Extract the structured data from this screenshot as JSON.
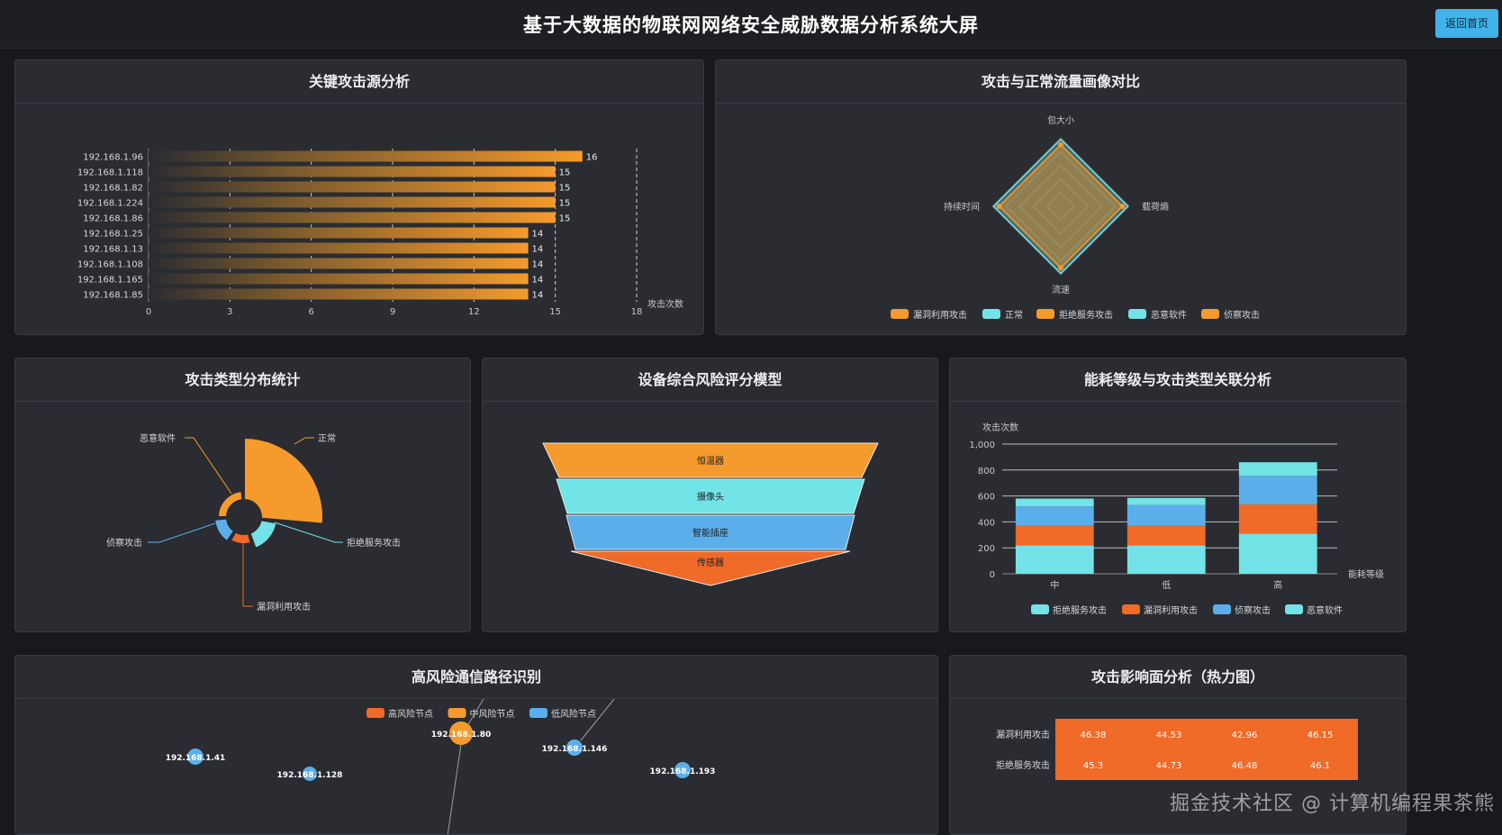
{
  "header": {
    "title": "基于大数据的物联网网络安全威胁数据分析系统大屏",
    "home_button": "返回首页"
  },
  "panels": {
    "attack_source": "关键攻击源分析",
    "profile": "攻击与正常流量画像对比",
    "attack_type": "攻击类型分布统计",
    "risk_model": "设备综合风险评分模型",
    "energy": "能耗等级与攻击类型关联分析",
    "path": "高风险通信路径识别",
    "heatmap": "攻击影响面分析（热力图）"
  },
  "colors": {
    "orange": "#f59a2d",
    "cyan": "#72e3e6",
    "blue": "#5aafea",
    "red_orange": "#f06a28"
  },
  "watermark": "掘金技术社区 @ 计算机编程果茶熊",
  "chart_data": [
    {
      "id": "attack_source",
      "type": "bar",
      "orientation": "horizontal",
      "categories": [
        "192.168.1.96",
        "192.168.1.118",
        "192.168.1.82",
        "192.168.1.224",
        "192.168.1.86",
        "192.168.1.25",
        "192.168.1.13",
        "192.168.1.108",
        "192.168.1.165",
        "192.168.1.85"
      ],
      "values": [
        16,
        15,
        15,
        15,
        15,
        14,
        14,
        14,
        14,
        14
      ],
      "xlabel": "攻击次数",
      "xlim": [
        0,
        18
      ],
      "xticks": [
        0,
        3,
        6,
        9,
        12,
        15,
        18
      ]
    },
    {
      "id": "profile",
      "type": "radar",
      "indicators": [
        "包大小",
        "载荷熵",
        "流速",
        "持续时间"
      ],
      "legend": [
        "漏洞利用攻击",
        "正常",
        "拒绝服务攻击",
        "恶意软件",
        "侦察攻击"
      ],
      "legend_colors": [
        "#f59a2d",
        "#72e3e6",
        "#f59a2d",
        "#72e3e6",
        "#f59a2d"
      ]
    },
    {
      "id": "attack_type",
      "type": "pie",
      "style": "rose",
      "labels": [
        "正常",
        "拒绝服务攻击",
        "漏洞利用攻击",
        "侦察攻击",
        "恶意软件"
      ],
      "colors": [
        "#f59a2d",
        "#72e3e6",
        "#f06a28",
        "#5aafea",
        "#f59a2d"
      ]
    },
    {
      "id": "risk_model",
      "type": "funnel",
      "labels": [
        "恒温器",
        "摄像头",
        "智能插座",
        "传感器"
      ],
      "colors": [
        "#f59a2d",
        "#72e3e6",
        "#5aafea",
        "#f06a28"
      ]
    },
    {
      "id": "energy",
      "type": "bar",
      "stacked": true,
      "categories": [
        "中",
        "低",
        "高"
      ],
      "ylabel": "攻击次数",
      "xlabel": "能耗等级",
      "ylim": [
        0,
        1000
      ],
      "yticks": [
        "0",
        "200",
        "400",
        "600",
        "800",
        "1,000"
      ],
      "series": [
        {
          "name": "拒绝服务攻击",
          "values": [
            220,
            220,
            310
          ],
          "color": "#72e3e6"
        },
        {
          "name": "漏洞利用攻击",
          "values": [
            155,
            150,
            225
          ],
          "color": "#f06a28"
        },
        {
          "name": "侦察攻击",
          "values": [
            145,
            160,
            220
          ],
          "color": "#5aafea"
        },
        {
          "name": "恶意软件",
          "values": [
            60,
            55,
            105
          ],
          "color": "#72e3e6"
        }
      ]
    },
    {
      "id": "path",
      "type": "graph",
      "legend": [
        "高风险节点",
        "中风险节点",
        "低风险节点"
      ],
      "legend_colors": [
        "#f06a28",
        "#f59a2d",
        "#5aafea"
      ],
      "nodes": [
        "192.168.1.41",
        "192.168.1.128",
        "192.168.1.80",
        "192.168.1.146",
        "192.168.1.193"
      ]
    },
    {
      "id": "heatmap",
      "type": "heatmap",
      "rows": [
        "漏洞利用攻击",
        "拒绝服务攻击"
      ],
      "values": [
        [
          "46.38",
          "44.53",
          "42.96",
          "46.15"
        ],
        [
          "45.3",
          "44.73",
          "46.48",
          "46.1"
        ]
      ]
    }
  ]
}
